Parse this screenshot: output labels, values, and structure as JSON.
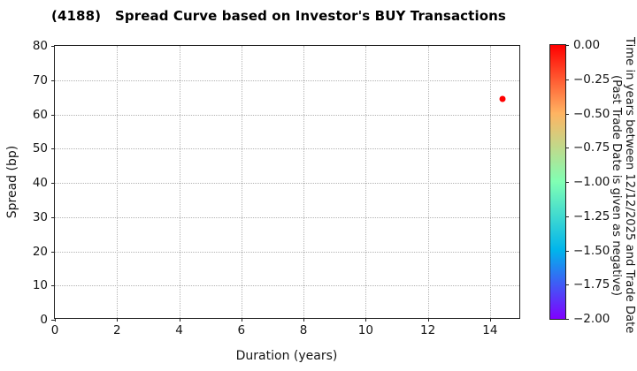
{
  "chart_data": {
    "type": "scatter",
    "title": "(4188)   Spread Curve based on Investor's BUY Transactions",
    "xlabel": "Duration (years)",
    "ylabel": "Spread (bp)",
    "xlim": [
      0,
      15
    ],
    "ylim": [
      0,
      80
    ],
    "xticks": [
      0,
      2,
      4,
      6,
      8,
      10,
      12,
      14
    ],
    "yticks": [
      0,
      10,
      20,
      30,
      40,
      50,
      60,
      70,
      80
    ],
    "grid": true,
    "grid_style": "dotted",
    "points": [
      {
        "x": 14.4,
        "y": 64.5,
        "color_value": 0.0,
        "color": "#ff0000"
      }
    ],
    "colorbar": {
      "label_line1": "Time in years between 12/12/2025 and Trade Date",
      "label_line2": "(Past Trade Date is given as negative)",
      "min": -2.0,
      "max": 0.0,
      "tick_labels": [
        "0.00",
        "−0.25",
        "−0.50",
        "−0.75",
        "−1.00",
        "−1.25",
        "−1.50",
        "−1.75",
        "−2.00"
      ],
      "gradient_stops": [
        "#ff0000 0%",
        "#ffb462 25%",
        "#80ffb4 50%",
        "#00b4ec 75%",
        "#8000ff 100%"
      ]
    },
    "colors": {
      "point_accent": "#ff0000",
      "gridline": "#b3b3b3",
      "spine": "#222222",
      "text": "#151515",
      "background": "#ffffff"
    }
  }
}
